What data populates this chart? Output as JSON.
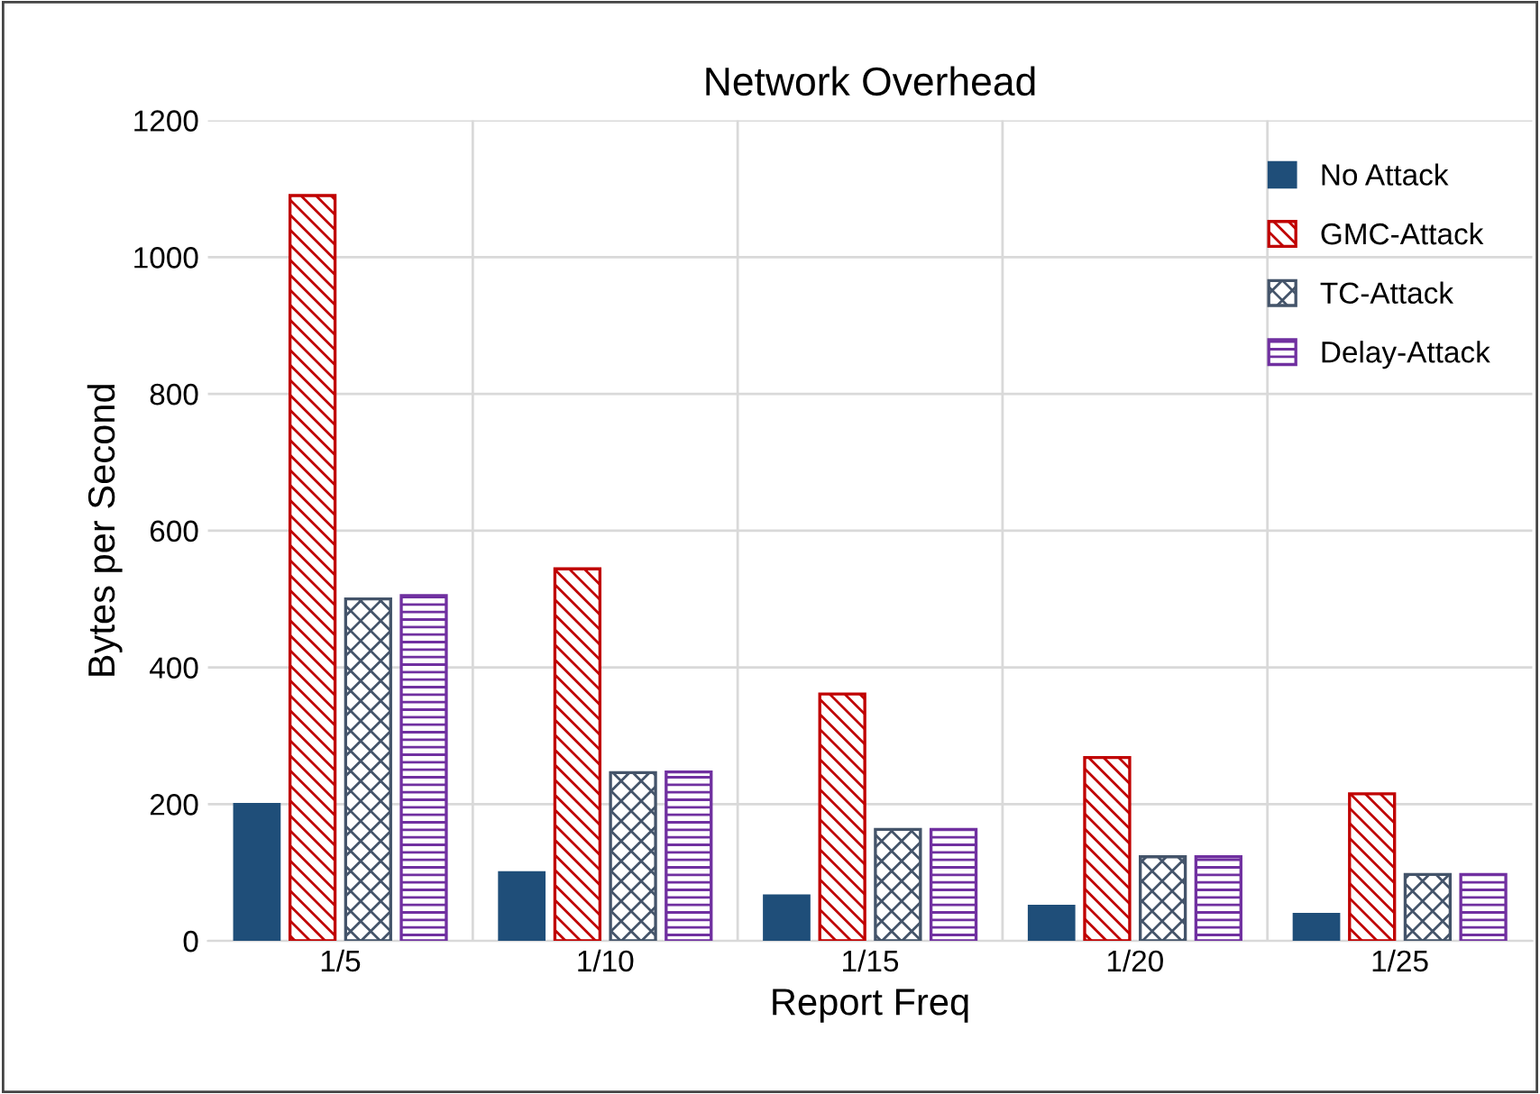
{
  "chart_data": {
    "type": "bar",
    "title": "Network Overhead",
    "xlabel": "Report Freq",
    "ylabel": "Bytes per Second",
    "categories": [
      "1/5",
      "1/10",
      "1/15",
      "1/20",
      "1/25"
    ],
    "series": [
      {
        "name": "No Attack",
        "color": "#1f4e79",
        "values": [
          200,
          100,
          66,
          51,
          39
        ]
      },
      {
        "name": "GMC-Attack",
        "color": "#c00000",
        "values": [
          1090,
          544,
          361,
          268,
          215
        ]
      },
      {
        "name": "TC-Attack",
        "color": "#44546a",
        "values": [
          500,
          246,
          163,
          123,
          97
        ]
      },
      {
        "name": "Delay-Attack",
        "color": "#7030a0",
        "values": [
          505,
          247,
          163,
          123,
          97
        ]
      }
    ],
    "ylim": [
      0,
      1200
    ],
    "yticks": [
      0,
      200,
      400,
      600,
      800,
      1000,
      1200
    ],
    "grid": true,
    "legend": "top right"
  }
}
